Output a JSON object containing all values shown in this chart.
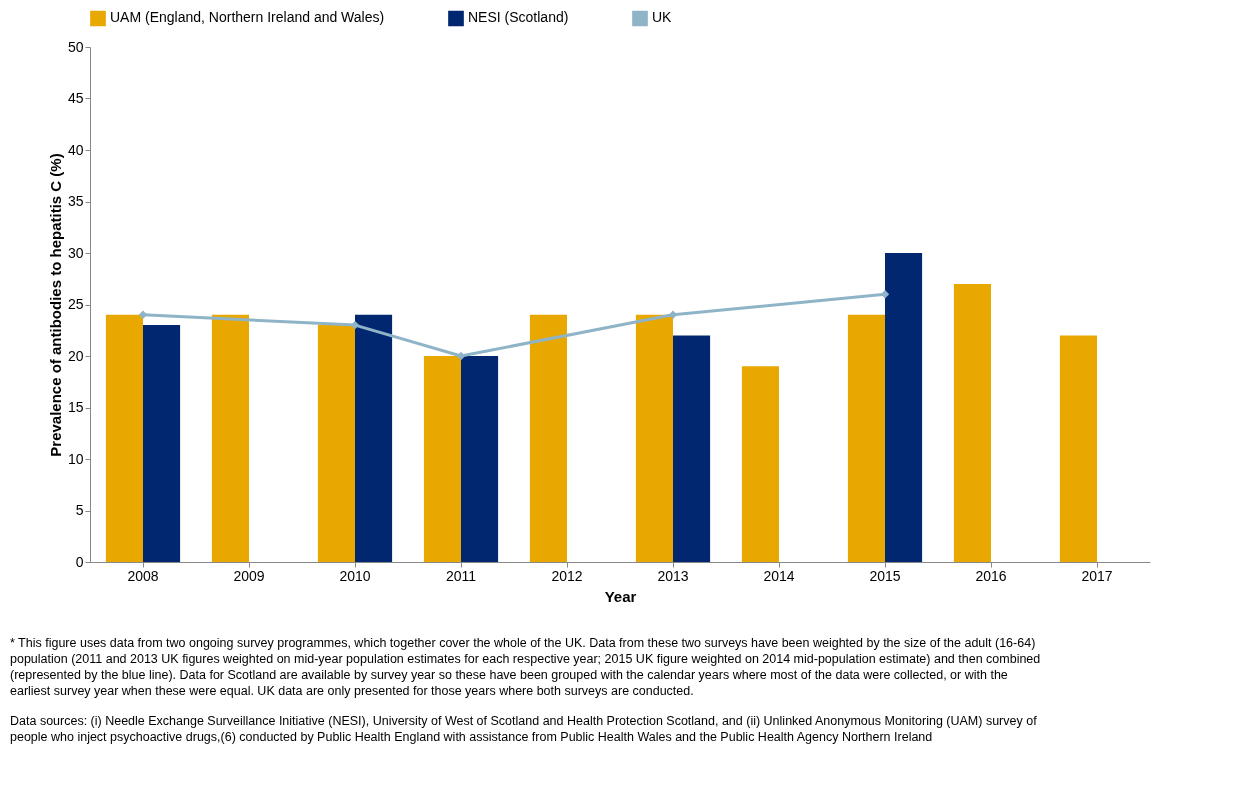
{
  "chart_data": {
    "type": "bar",
    "xlabel": "Year",
    "ylabel": "Prevalence of antibodies to hepatitis C (%)",
    "categories": [
      "2008",
      "2009",
      "2010",
      "2011",
      "2012",
      "2013",
      "2014",
      "2015",
      "2016",
      "2017"
    ],
    "series": [
      {
        "name": "UAM (England, Northern Ireland and Wales)",
        "color": "#e8a800",
        "values": [
          24,
          24,
          23,
          20,
          24,
          24,
          19,
          24,
          27,
          22
        ]
      },
      {
        "name": "NESI (Scotland)",
        "color": "#002770",
        "values": [
          23,
          null,
          24,
          20,
          null,
          22,
          null,
          30,
          null,
          null
        ]
      },
      {
        "name": "UK",
        "type": "line",
        "color": "#8fb4c8",
        "marker": "diamond",
        "values": [
          24,
          null,
          23,
          20,
          null,
          24,
          null,
          26,
          null,
          null
        ]
      }
    ],
    "ylim": [
      0,
      50
    ],
    "yticks": [
      0,
      5,
      10,
      15,
      20,
      25,
      30,
      35,
      40,
      45,
      50
    ],
    "grid": false,
    "legend": "top",
    "annotations": [
      "* This figure uses data from two ongoing survey programmes, which together cover the whole of the UK. Data from these two surveys have been weighted by the size of the adult (16-64) population (2011 and 2013 UK figures weighted on mid-year population estimates for each respective year; 2015 UK figure weighted on 2014 mid-population estimate) and then combined (represented by the blue line). Data for Scotland are available by survey year so these have been grouped with the calendar years where most of the data were collected, or with the earliest survey year when these were equal. UK data are only presented for those years where both surveys are conducted.",
      "Data sources: (i) Needle Exchange Surveillance Initiative (NESI), University of West of Scotland and Health Protection Scotland, and (ii) Unlinked Anonymous Monitoring (UAM) survey of people who inject psychoactive drugs,(6) conducted by Public Health England with assistance from Public Health Wales and the Public Health Agency Northern Ireland"
    ]
  }
}
